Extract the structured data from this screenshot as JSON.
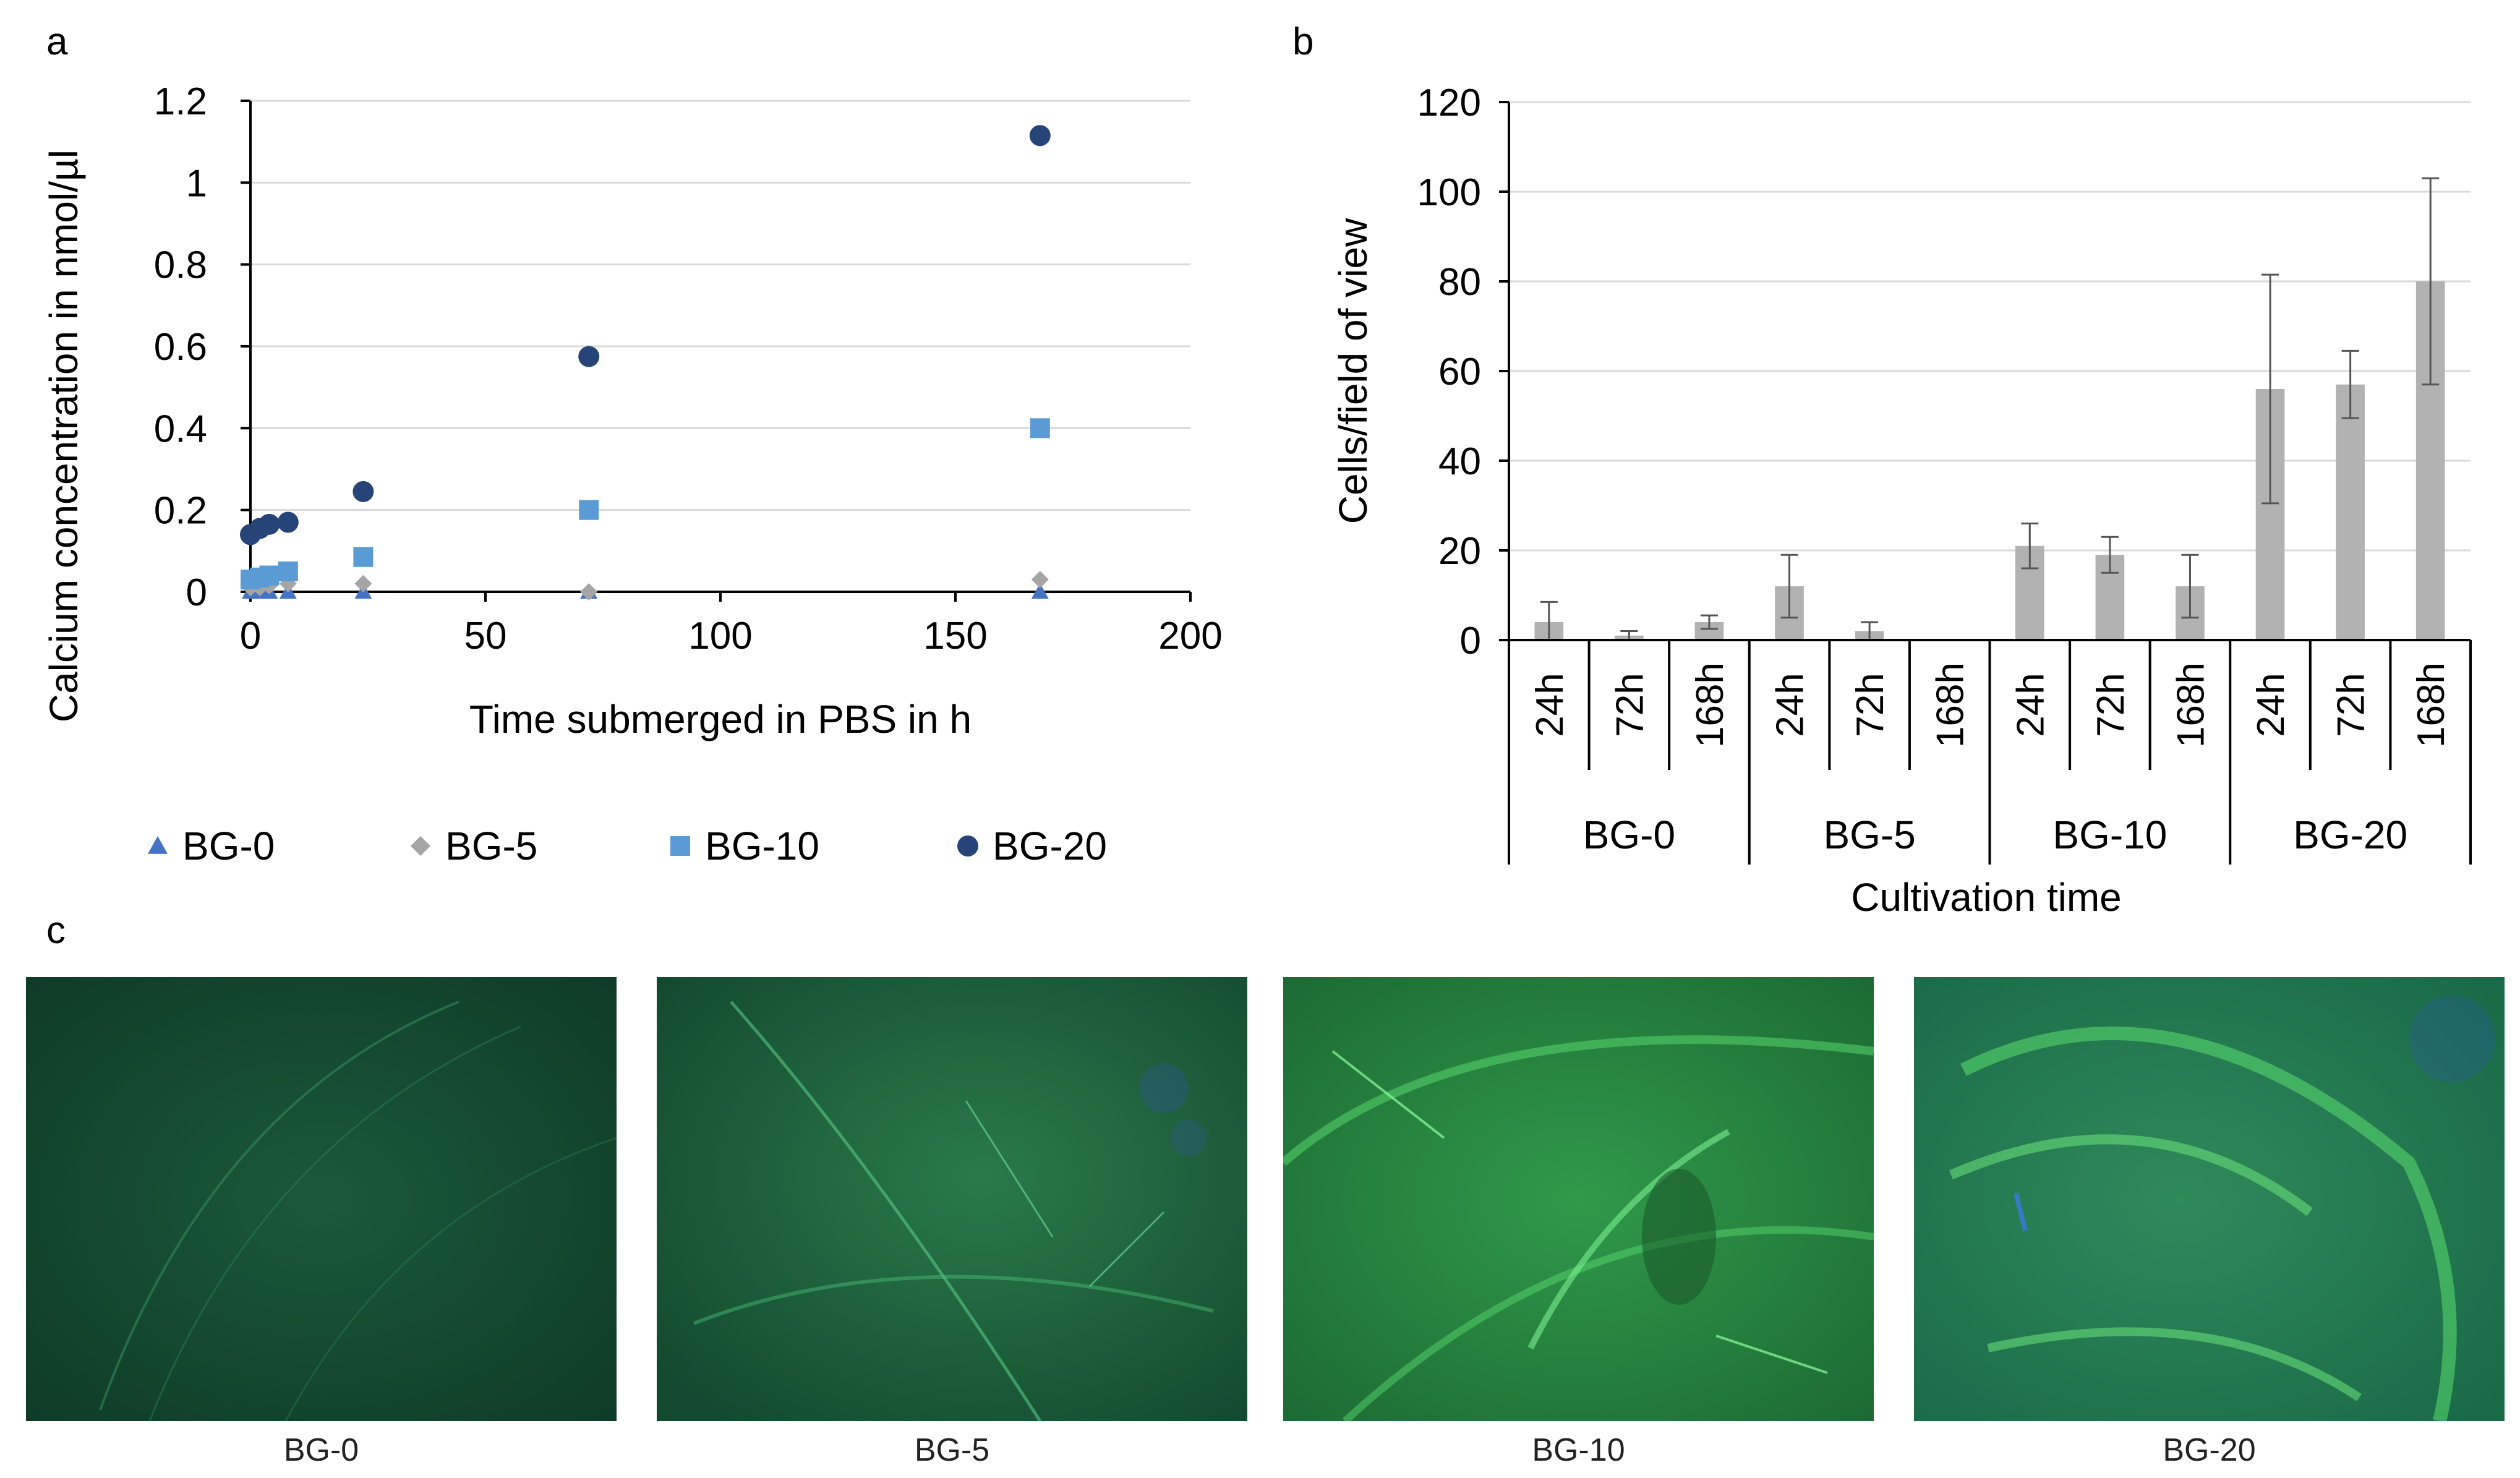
{
  "panel_labels": {
    "a": "a",
    "b": "b",
    "c": "c"
  },
  "colors": {
    "BG-0": "#4472c4",
    "BG-5": "#a5a5a5",
    "BG-10": "#5b9bd5",
    "BG-20": "#264478",
    "bars": "#b2b2b2",
    "errorbars": "#555555",
    "gridline": "#d9d9d9",
    "axis": "#000000"
  },
  "chart_data": [
    {
      "type": "scatter",
      "panel": "a",
      "title": "",
      "xlabel": "Time submerged in PBS in h",
      "ylabel": "Calcium concentration in nmol/µl",
      "xlim": [
        0,
        200
      ],
      "ylim": [
        0,
        1.2
      ],
      "x_ticks": [
        0,
        50,
        100,
        150,
        200
      ],
      "x_tick_labels": [
        "0",
        "50",
        "100",
        "150",
        "200"
      ],
      "y_ticks": [
        0,
        0.2,
        0.4,
        0.6,
        0.8,
        1.0,
        1.2
      ],
      "y_tick_labels": [
        "0",
        "0.2",
        "0.4",
        "0.6",
        "0.8",
        "1",
        "1.2"
      ],
      "grid": true,
      "legend": "bottom",
      "series": [
        {
          "name": "BG-0",
          "marker": "triangle",
          "x": [
            0,
            2,
            4,
            8,
            24,
            72,
            168
          ],
          "y": [
            0,
            0,
            0,
            0,
            0,
            0,
            0
          ]
        },
        {
          "name": "BG-5",
          "marker": "diamond",
          "x": [
            0,
            2,
            4,
            8,
            24,
            72,
            168
          ],
          "y": [
            0.01,
            0.01,
            0.015,
            0.02,
            0.02,
            0.0,
            0.03
          ]
        },
        {
          "name": "BG-10",
          "marker": "square",
          "x": [
            0,
            2,
            4,
            8,
            24,
            72,
            168
          ],
          "y": [
            0.03,
            0.035,
            0.04,
            0.05,
            0.085,
            0.2,
            0.4
          ]
        },
        {
          "name": "BG-20",
          "marker": "circle",
          "x": [
            0,
            2,
            4,
            8,
            24,
            72,
            168
          ],
          "y": [
            0.14,
            0.155,
            0.165,
            0.17,
            0.245,
            0.575,
            1.115
          ]
        }
      ]
    },
    {
      "type": "bar",
      "panel": "b",
      "title": "",
      "xlabel": "Cultivation time",
      "ylabel": "Cells/field of view",
      "ylim": [
        0,
        120
      ],
      "y_ticks": [
        0,
        20,
        40,
        60,
        80,
        100,
        120
      ],
      "y_tick_labels": [
        "0",
        "20",
        "40",
        "60",
        "80",
        "100",
        "120"
      ],
      "grid": true,
      "groups": [
        {
          "name": "BG-0",
          "categories": [
            "24h",
            "72h",
            "168h"
          ],
          "values": [
            4,
            1,
            4
          ],
          "errors": [
            4.5,
            1,
            1.5
          ]
        },
        {
          "name": "BG-5",
          "categories": [
            "24h",
            "72h",
            "168h"
          ],
          "values": [
            12,
            2,
            0
          ],
          "errors": [
            7,
            2,
            0
          ]
        },
        {
          "name": "BG-10",
          "categories": [
            "24h",
            "72h",
            "168h"
          ],
          "values": [
            21,
            19,
            12
          ],
          "errors": [
            5,
            4,
            7
          ]
        },
        {
          "name": "BG-20",
          "categories": [
            "24h",
            "72h",
            "168h"
          ],
          "values": [
            56,
            57,
            80
          ],
          "errors": [
            25.5,
            7.5,
            23
          ]
        }
      ]
    }
  ],
  "micrographs": [
    {
      "label": "BG-0",
      "intensity": 0.15
    },
    {
      "label": "BG-5",
      "intensity": 0.35
    },
    {
      "label": "BG-10",
      "intensity": 0.7
    },
    {
      "label": "BG-20",
      "intensity": 0.9
    }
  ]
}
